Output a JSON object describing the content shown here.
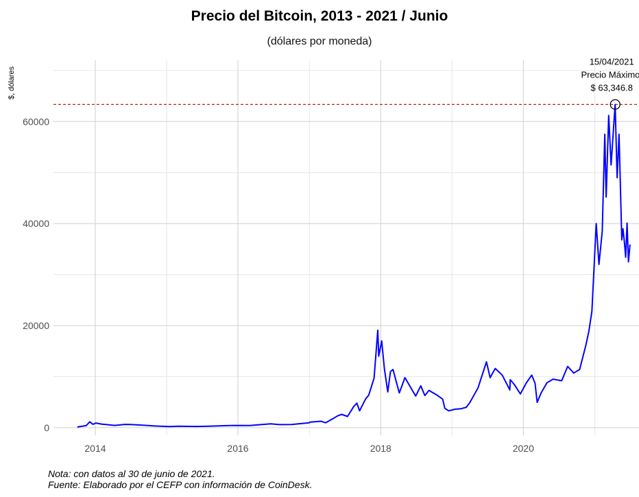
{
  "chart_data": {
    "type": "line",
    "title": "Precio del Bitcoin, 2013 - 2021 / Junio",
    "subtitle": "(dólares por moneda)",
    "xlabel": "",
    "ylabel": "$, dólares",
    "xlim": [
      "2013-06-01",
      "2021-08-15"
    ],
    "ylim": [
      -1500,
      72000
    ],
    "x_ticks": [
      "2014",
      "2016",
      "2018",
      "2020"
    ],
    "y_ticks": [
      0,
      20000,
      40000,
      60000
    ],
    "grid": true,
    "color": "#0000ff",
    "reference_line": {
      "value": 63346.8,
      "color": "#b22222",
      "style": "dashed"
    },
    "annotation": {
      "date": "2021-04-15",
      "value": 63346.8,
      "lines": [
        "15/04/2021",
        "Precio Máximo:",
        "$ 63,346.8"
      ]
    },
    "series": [
      {
        "x": [
          "2013-10-01",
          "2013-11-15",
          "2013-12-04",
          "2013-12-20",
          "2014-01-05",
          "2014-02-01",
          "2014-03-01",
          "2014-04-10",
          "2014-06-01",
          "2014-07-01",
          "2014-09-01",
          "2014-11-01",
          "2015-01-14",
          "2015-03-01",
          "2015-06-01",
          "2015-08-01",
          "2015-11-04",
          "2015-12-15",
          "2016-03-01",
          "2016-06-17",
          "2016-08-01",
          "2016-10-01",
          "2016-12-31",
          "2017-01-05",
          "2017-03-01",
          "2017-03-25",
          "2017-05-01",
          "2017-05-25",
          "2017-06-15",
          "2017-07-15",
          "2017-08-15",
          "2017-09-01",
          "2017-09-15",
          "2017-10-15",
          "2017-11-01",
          "2017-11-28",
          "2017-12-17",
          "2017-12-22",
          "2018-01-06",
          "2018-01-20",
          "2018-02-06",
          "2018-02-20",
          "2018-03-05",
          "2018-04-06",
          "2018-05-05",
          "2018-06-29",
          "2018-07-25",
          "2018-08-15",
          "2018-09-05",
          "2018-10-15",
          "2018-11-14",
          "2018-11-25",
          "2018-12-15",
          "2019-01-15",
          "2019-02-15",
          "2019-03-15",
          "2019-04-02",
          "2019-05-14",
          "2019-06-26",
          "2019-07-15",
          "2019-08-10",
          "2019-09-15",
          "2019-10-24",
          "2019-10-26",
          "2019-11-15",
          "2019-12-17",
          "2020-01-15",
          "2020-02-13",
          "2020-03-01",
          "2020-03-12",
          "2020-04-01",
          "2020-05-01",
          "2020-06-01",
          "2020-07-15",
          "2020-08-15",
          "2020-09-15",
          "2020-10-15",
          "2020-11-15",
          "2020-12-01",
          "2020-12-17",
          "2021-01-08",
          "2021-01-22",
          "2021-02-08",
          "2021-02-21",
          "2021-02-28",
          "2021-03-13",
          "2021-03-25",
          "2021-04-15",
          "2021-04-25",
          "2021-05-05",
          "2021-05-19",
          "2021-05-25",
          "2021-06-01",
          "2021-06-08",
          "2021-06-15",
          "2021-06-22",
          "2021-06-30"
        ],
        "values": [
          130,
          400,
          1150,
          650,
          900,
          700,
          600,
          430,
          640,
          620,
          480,
          330,
          210,
          270,
          230,
          280,
          400,
          440,
          420,
          750,
          590,
          610,
          960,
          1100,
          1250,
          960,
          1750,
          2300,
          2600,
          2200,
          4100,
          4800,
          3300,
          5600,
          6400,
          9700,
          19100,
          14000,
          17000,
          11500,
          7000,
          11000,
          11400,
          6800,
          9800,
          6200,
          8200,
          6300,
          7300,
          6400,
          5600,
          3800,
          3300,
          3600,
          3700,
          4000,
          4900,
          7800,
          12900,
          9800,
          11600,
          10300,
          7400,
          9400,
          8500,
          6600,
          8700,
          10300,
          8700,
          4950,
          6800,
          8800,
          9500,
          9200,
          12000,
          10700,
          11400,
          16000,
          18800,
          22800,
          40000,
          32000,
          38500,
          57500,
          45200,
          61200,
          51500,
          63346.8,
          49000,
          57500,
          36800,
          39000,
          36500,
          33400,
          40100,
          32500,
          35900
        ]
      }
    ]
  },
  "notes": {
    "line1": "Nota: con datos al 30 de junio de 2021.",
    "line2": "Fuente: Elaborado por el CEFP con información de CoinDesk."
  }
}
